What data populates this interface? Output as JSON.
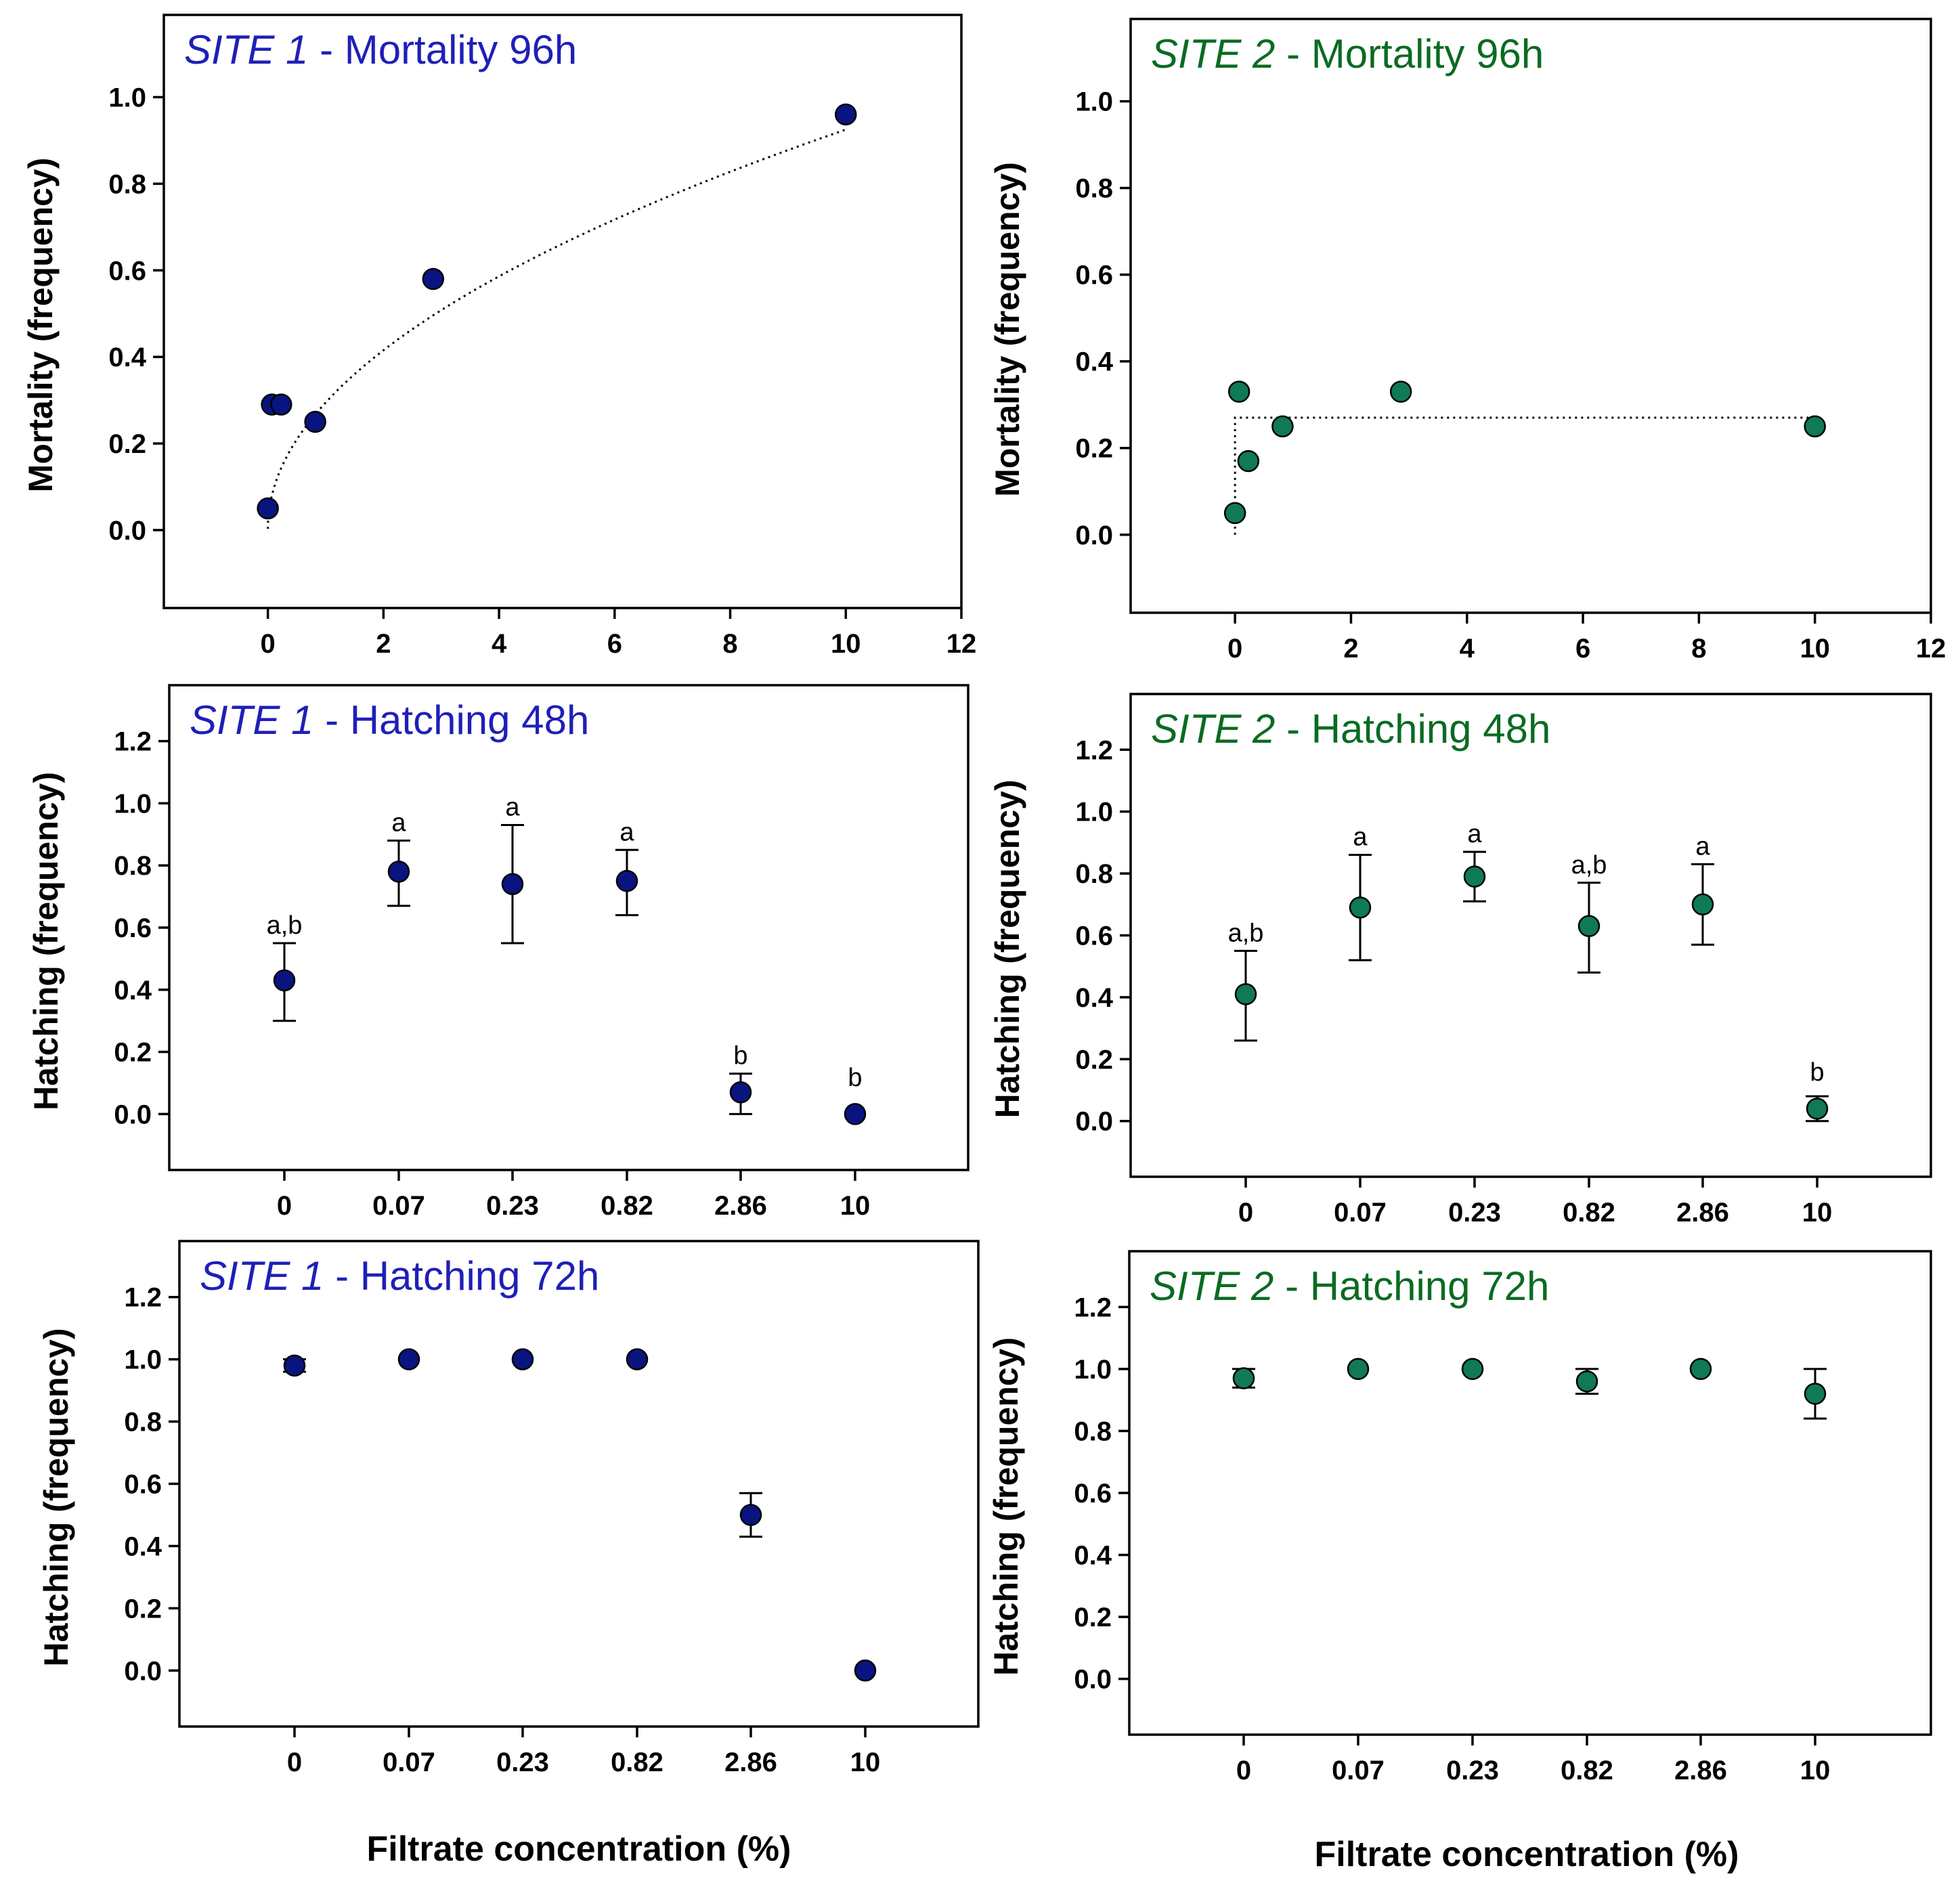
{
  "colors": {
    "site1": "#0a1480",
    "site1_title": "#1f1fb8",
    "site2": "#0f7a55",
    "site2_title": "#0a6b22",
    "axis": "#000000"
  },
  "x_label": "Filtrate concentration (%)",
  "chart_data": [
    {
      "type": "scatter",
      "site_label": "SITE 1",
      "title_rest": "- Mortality 96h",
      "site": "site1",
      "ylabel": "Mortality (frequency)",
      "ylim": [
        -0.18,
        1.19
      ],
      "xlim": [
        -1.8,
        12
      ],
      "y_ticks": [
        0.0,
        0.2,
        0.4,
        0.6,
        0.8,
        1.0
      ],
      "x_ticks": [
        0,
        2,
        4,
        6,
        8,
        10,
        12
      ],
      "points": [
        {
          "x": 0,
          "y": 0.05
        },
        {
          "x": 0.07,
          "y": 0.29
        },
        {
          "x": 0.23,
          "y": 0.29
        },
        {
          "x": 0.82,
          "y": 0.25
        },
        {
          "x": 2.86,
          "y": 0.58
        },
        {
          "x": 10,
          "y": 0.96
        }
      ],
      "fit_curve": "power"
    },
    {
      "type": "scatter",
      "site_label": "SITE 2",
      "title_rest": "- Mortality 96h",
      "site": "site2",
      "ylabel": "Mortality (frequency)",
      "ylim": [
        -0.18,
        1.19
      ],
      "xlim": [
        -1.8,
        12
      ],
      "y_ticks": [
        0.0,
        0.2,
        0.4,
        0.6,
        0.8,
        1.0
      ],
      "x_ticks": [
        0,
        2,
        4,
        6,
        8,
        10,
        12
      ],
      "points": [
        {
          "x": 0,
          "y": 0.05
        },
        {
          "x": 0.07,
          "y": 0.33
        },
        {
          "x": 0.23,
          "y": 0.17
        },
        {
          "x": 0.82,
          "y": 0.25
        },
        {
          "x": 2.86,
          "y": 0.33
        },
        {
          "x": 10,
          "y": 0.25
        }
      ],
      "fit_curve": "step",
      "fit_level": 0.27
    },
    {
      "type": "scatter",
      "site_label": "SITE 1",
      "title_rest": "- Hatching 48h",
      "site": "site1",
      "ylabel": "Hatching (frequency)",
      "ylim": [
        -0.18,
        1.38
      ],
      "y_ticks": [
        0.0,
        0.2,
        0.4,
        0.6,
        0.8,
        1.0,
        1.2
      ],
      "categories": [
        "0",
        "0.07",
        "0.23",
        "0.82",
        "2.86",
        "10"
      ],
      "values": [
        0.43,
        0.78,
        0.74,
        0.75,
        0.07,
        0.0
      ],
      "error_low": [
        0.3,
        0.67,
        0.55,
        0.64,
        0.0,
        0.0
      ],
      "error_high": [
        0.55,
        0.88,
        0.93,
        0.85,
        0.13,
        0.0
      ],
      "significance": [
        "a,b",
        "a",
        "a",
        "a",
        "b",
        "b"
      ]
    },
    {
      "type": "scatter",
      "site_label": "SITE 2",
      "title_rest": "- Hatching 48h",
      "site": "site2",
      "ylabel": "Hatching (frequency)",
      "ylim": [
        -0.18,
        1.38
      ],
      "y_ticks": [
        0.0,
        0.2,
        0.4,
        0.6,
        0.8,
        1.0,
        1.2
      ],
      "categories": [
        "0",
        "0.07",
        "0.23",
        "0.82",
        "2.86",
        "10"
      ],
      "values": [
        0.41,
        0.69,
        0.79,
        0.63,
        0.7,
        0.04
      ],
      "error_low": [
        0.26,
        0.52,
        0.71,
        0.48,
        0.57,
        0.0
      ],
      "error_high": [
        0.55,
        0.86,
        0.87,
        0.77,
        0.83,
        0.08
      ],
      "significance": [
        "a,b",
        "a",
        "a",
        "a,b",
        "a",
        "b"
      ]
    },
    {
      "type": "scatter",
      "site_label": "SITE 1",
      "title_rest": "- Hatching 72h",
      "site": "site1",
      "ylabel": "Hatching (frequency)",
      "ylim": [
        -0.18,
        1.38
      ],
      "y_ticks": [
        0.0,
        0.2,
        0.4,
        0.6,
        0.8,
        1.0,
        1.2
      ],
      "categories": [
        "0",
        "0.07",
        "0.23",
        "0.82",
        "2.86",
        "10"
      ],
      "values": [
        0.98,
        1.0,
        1.0,
        1.0,
        0.5,
        0.0
      ],
      "error_low": [
        0.96,
        1.0,
        1.0,
        1.0,
        0.43,
        0.0
      ],
      "error_high": [
        1.0,
        1.0,
        1.0,
        1.0,
        0.57,
        0.0
      ]
    },
    {
      "type": "scatter",
      "site_label": "SITE 2",
      "title_rest": "- Hatching 72h",
      "site": "site2",
      "ylabel": "Hatching (frequency)",
      "ylim": [
        -0.18,
        1.38
      ],
      "y_ticks": [
        0.0,
        0.2,
        0.4,
        0.6,
        0.8,
        1.0,
        1.2
      ],
      "categories": [
        "0",
        "0.07",
        "0.23",
        "0.82",
        "2.86",
        "10"
      ],
      "values": [
        0.97,
        1.0,
        1.0,
        0.96,
        1.0,
        0.92
      ],
      "error_low": [
        0.94,
        1.0,
        1.0,
        0.92,
        1.0,
        0.84
      ],
      "error_high": [
        1.0,
        1.0,
        1.0,
        1.0,
        1.0,
        1.0
      ]
    }
  ]
}
